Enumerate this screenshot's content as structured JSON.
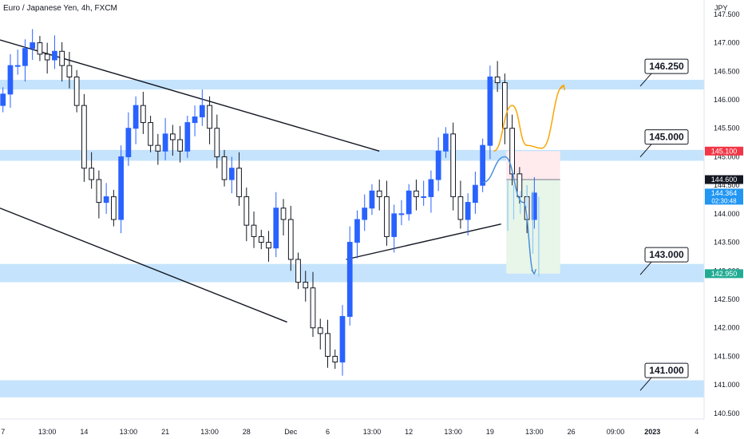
{
  "chart_data": {
    "type": "candlestick",
    "title": "Euro / Japanese Yen, 4h, FXCM",
    "currency_label": "JPY",
    "y_axis": {
      "min": 140.4,
      "max": 147.75,
      "ticks": [
        140.5,
        141.0,
        141.5,
        142.0,
        142.5,
        143.0,
        143.5,
        144.0,
        144.5,
        145.0,
        145.5,
        146.0,
        146.5,
        147.0,
        147.5
      ]
    },
    "y_tick_labels": [
      "140.500",
      "141.000",
      "141.500",
      "142.000",
      "142.500",
      "143.000",
      "143.500",
      "144.000",
      "144.500",
      "145.000",
      "145.500",
      "146.000",
      "146.500",
      "147.000",
      "147.500"
    ],
    "x_tick_labels": [
      "7",
      "13:00",
      "14",
      "13:00",
      "21",
      "13:00",
      "28",
      "Dec",
      "6",
      "13:00",
      "12",
      "13:00",
      "19",
      "13:00",
      "26",
      "09:00",
      "2023",
      "4"
    ],
    "x_tick_positions": [
      0,
      6,
      11,
      17,
      22,
      28,
      33,
      39,
      44,
      50,
      55,
      61,
      66,
      72,
      77,
      83,
      88,
      94
    ],
    "x_range": [
      -0.4,
      95
    ],
    "zones": [
      {
        "label": "146.250",
        "from": 146.18,
        "to": 146.35
      },
      {
        "label": "145.000",
        "from": 144.93,
        "to": 145.12
      },
      {
        "label": "143.000",
        "from": 142.8,
        "to": 143.12
      },
      {
        "label": "141.000",
        "from": 140.78,
        "to": 141.08
      }
    ],
    "price_tags": [
      {
        "label": "145.100",
        "value": 145.1,
        "color": "#f23645"
      },
      {
        "label": "144.600",
        "value": 144.6,
        "color": "#131722"
      },
      {
        "label": "144.364",
        "value": 144.364,
        "color": "#2196f3",
        "sub": "02:30:48"
      },
      {
        "label": "142.950",
        "value": 142.95,
        "color": "#22ab94"
      }
    ],
    "trendlines": [
      {
        "from": [
          -0.4,
          147.05
        ],
        "to": [
          51,
          145.1
        ]
      },
      {
        "from": [
          -0.4,
          144.1
        ],
        "to": [
          38.5,
          142.1
        ]
      },
      {
        "from": [
          46.5,
          143.2
        ],
        "to": [
          67.5,
          143.82
        ]
      }
    ],
    "position": {
      "x0": 68.2,
      "x1": 75.5,
      "entry": 144.6,
      "stop": 145.1,
      "target": 142.95
    },
    "arrows": [
      {
        "color": "#f7a600",
        "points": [
          [
            66.5,
            145.1
          ],
          [
            69,
            145.9
          ],
          [
            71,
            145.2
          ],
          [
            73,
            145.15
          ],
          [
            76,
            146.25
          ]
        ]
      },
      {
        "color": "#4a90d9",
        "points": [
          [
            65,
            144.55
          ],
          [
            68,
            145.0
          ],
          [
            70.5,
            144.2
          ],
          [
            72,
            142.95
          ]
        ]
      }
    ],
    "close_series": [
      146.1,
      146.6,
      146.6,
      146.9,
      147.0,
      146.8,
      146.7,
      146.85,
      146.6,
      146.4,
      145.9,
      144.8,
      144.6,
      144.2,
      144.3,
      143.9,
      145.0,
      145.5,
      145.9,
      145.6,
      145.2,
      145.1,
      145.4,
      145.3,
      145.1,
      145.6,
      145.7,
      145.9,
      145.5,
      145.0,
      144.6,
      144.8,
      144.3,
      143.8,
      143.6,
      143.5,
      143.4,
      144.1,
      143.9,
      143.2,
      142.8,
      142.7,
      142.0,
      141.9,
      141.5,
      141.4,
      142.2,
      143.5,
      143.9,
      144.1,
      144.4,
      144.3,
      143.6,
      144.0,
      144.0,
      144.4,
      144.3,
      144.3,
      144.6,
      145.1,
      145.4,
      144.3,
      143.9,
      144.2,
      144.5,
      145.2,
      146.4,
      146.3,
      145.5,
      144.7,
      144.3,
      143.9,
      144.364
    ],
    "ghost_wicks": [
      {
        "x": 68.4,
        "high": 144.6,
        "low": 143.7
      },
      {
        "x": 69.2,
        "high": 144.5,
        "low": 143.9
      },
      {
        "x": 70.1,
        "high": 144.4,
        "low": 144.0
      },
      {
        "x": 71.0,
        "high": 144.5,
        "low": 144.1
      },
      {
        "x": 71.8,
        "high": 144.4,
        "low": 143.3
      },
      {
        "x": 72.6,
        "high": 144.3,
        "low": 142.9
      }
    ],
    "colors": {
      "up": "#2962ff",
      "down": "#131722",
      "zone": "#bbdefb",
      "profit": "#e8f5e9",
      "loss": "#ffebee",
      "axis_text": "#131722",
      "grid": "#e0e3eb"
    }
  }
}
